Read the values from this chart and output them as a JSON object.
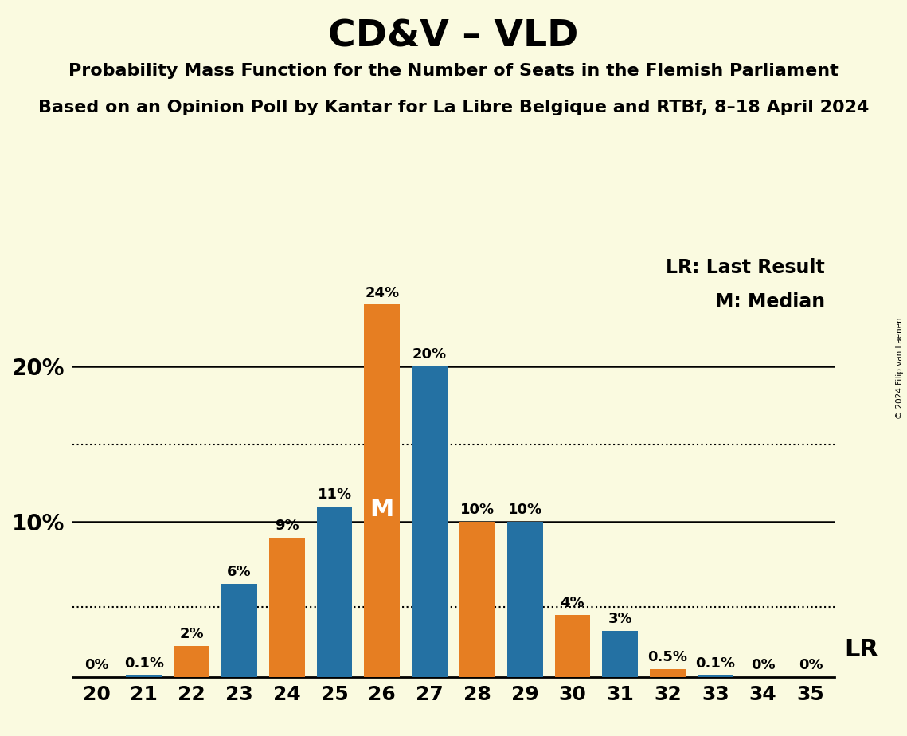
{
  "title": "CD&V – VLD",
  "subtitle1": "Probability Mass Function for the Number of Seats in the Flemish Parliament",
  "subtitle2": "Based on an Opinion Poll by Kantar for La Libre Belgique and RTBf, 8–18 April 2024",
  "copyright": "© 2024 Filip van Laenen",
  "legend_lr": "LR: Last Result",
  "legend_m": "M: Median",
  "seats": [
    20,
    21,
    22,
    23,
    24,
    25,
    26,
    27,
    28,
    29,
    30,
    31,
    32,
    33,
    34,
    35
  ],
  "bar_values": [
    0.0,
    0.1,
    2.0,
    6.0,
    9.0,
    11.0,
    24.0,
    20.0,
    10.0,
    10.0,
    4.0,
    3.0,
    0.5,
    0.1,
    0.0,
    0.0
  ],
  "bar_colors": [
    "#E67E22",
    "#2471A3",
    "#E67E22",
    "#2471A3",
    "#E67E22",
    "#2471A3",
    "#E67E22",
    "#2471A3",
    "#E67E22",
    "#2471A3",
    "#E67E22",
    "#2471A3",
    "#E67E22",
    "#2471A3",
    "#E67E22",
    "#2471A3"
  ],
  "bar_labels": [
    "0%",
    "0.1%",
    "2%",
    "6%",
    "9%",
    "11%",
    "24%",
    "20%",
    "10%",
    "10%",
    "4%",
    "3%",
    "0.5%",
    "0.1%",
    "0%",
    "0%"
  ],
  "label_colors": [
    "black",
    "black",
    "black",
    "black",
    "black",
    "black",
    "black",
    "black",
    "black",
    "black",
    "black",
    "black",
    "black",
    "black",
    "black",
    "black"
  ],
  "median_seat": 26,
  "median_label_color": "white",
  "lr_seat": 32,
  "blue_color": "#2471A3",
  "orange_color": "#E67E22",
  "bg_color": "#FAFAE0",
  "dotted_line_1": 15.0,
  "dotted_line_2": 4.5,
  "solid_line_1": 20.0,
  "solid_line_2": 10.0,
  "xlim": [
    19.5,
    35.5
  ],
  "ylim": [
    0,
    27.5
  ],
  "bar_width": 0.75
}
